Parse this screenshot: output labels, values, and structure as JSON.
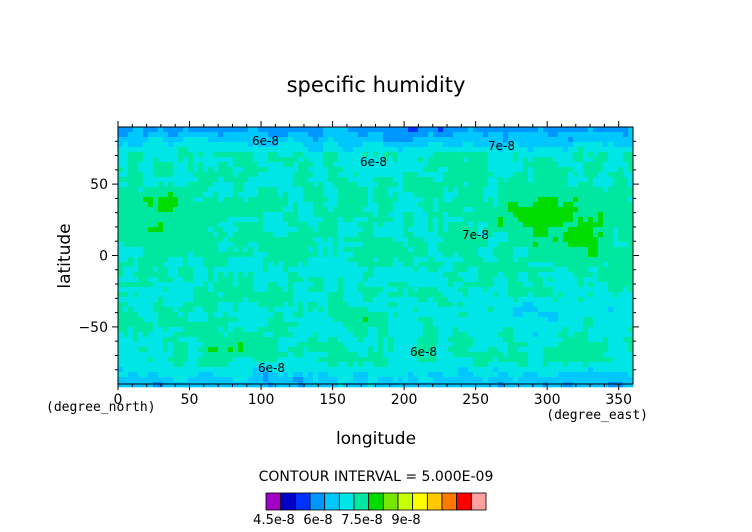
{
  "chart_data": {
    "type": "heatmap",
    "title": "specific humidity",
    "xlabel": "longitude",
    "ylabel": "latitude",
    "x_unit": "(degree_east)",
    "y_unit": "(degree_north)",
    "xlim": [
      0,
      360
    ],
    "ylim": [
      -90,
      90
    ],
    "x_ticks": [
      "0",
      "50",
      "100",
      "150",
      "200",
      "250",
      "300",
      "350"
    ],
    "y_ticks": [
      "50",
      "0",
      "−50"
    ],
    "contour_labels": [
      "6e-8",
      "6e-8",
      "7e-8",
      "7e-8",
      "6e-8",
      "6e-8"
    ],
    "contour_interval_text": "CONTOUR INTERVAL = 5.000E-09",
    "colorbar": {
      "tick_labels": [
        "4.5e-8",
        "6e-8",
        "7.5e-8",
        "9e-8"
      ],
      "colors": [
        "#a000c8",
        "#0000c8",
        "#0032ff",
        "#0096ff",
        "#00c8ff",
        "#00e6e6",
        "#00e8a0",
        "#00dc00",
        "#78e600",
        "#c8ff00",
        "#ffff00",
        "#ffc800",
        "#ff7800",
        "#ff0000",
        "#ffa0a0"
      ]
    }
  }
}
